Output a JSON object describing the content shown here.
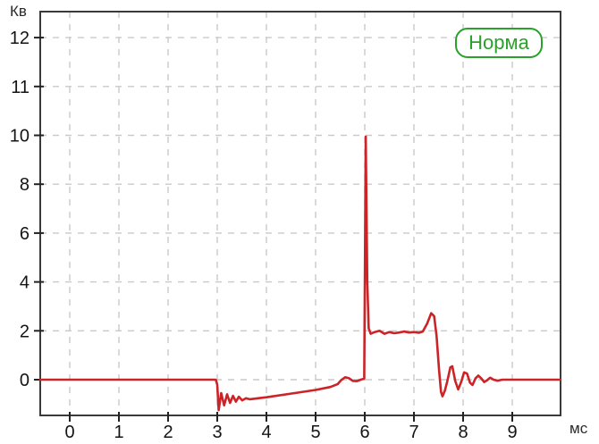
{
  "labels": {
    "y_unit": "Кв",
    "x_unit": "мс"
  },
  "badge": {
    "label": "Норма"
  },
  "colors": {
    "line": "#cc2327",
    "grid": "#c9c9c9",
    "axis": "#3a3a3a",
    "tick": "#222222",
    "text": "#141414",
    "badge": "#2aa12a",
    "background": "#ffffff"
  },
  "chart_data": {
    "type": "line",
    "title": "",
    "xlabel": "мс",
    "ylabel": "Кв",
    "grid": "dashed",
    "x_ticks": [
      0,
      1,
      2,
      3,
      4,
      5,
      6,
      7,
      8,
      9
    ],
    "y_ticks": [
      0,
      2,
      4,
      6,
      8,
      10,
      11,
      12
    ],
    "x_range": [
      -0.6,
      9.98
    ],
    "y_tick_note": "ticks equally spaced on screen: step 2 from 0-10, step 1 from 10-12",
    "annotations": [
      "Норма"
    ],
    "series": [
      {
        "name": "waveform",
        "color": "#cc2327",
        "points": [
          [
            -0.6,
            0
          ],
          [
            2.97,
            0
          ],
          [
            3.0,
            -0.2
          ],
          [
            3.03,
            -1.25
          ],
          [
            3.08,
            -0.55
          ],
          [
            3.14,
            -1.05
          ],
          [
            3.2,
            -0.6
          ],
          [
            3.26,
            -0.95
          ],
          [
            3.32,
            -0.66
          ],
          [
            3.38,
            -0.9
          ],
          [
            3.44,
            -0.7
          ],
          [
            3.51,
            -0.85
          ],
          [
            3.58,
            -0.76
          ],
          [
            3.66,
            -0.8
          ],
          [
            4.0,
            -0.72
          ],
          [
            4.5,
            -0.57
          ],
          [
            5.0,
            -0.42
          ],
          [
            5.3,
            -0.3
          ],
          [
            5.45,
            -0.18
          ],
          [
            5.52,
            -0.02
          ],
          [
            5.6,
            0.1
          ],
          [
            5.68,
            0.06
          ],
          [
            5.76,
            -0.05
          ],
          [
            5.84,
            -0.06
          ],
          [
            5.92,
            0.0
          ],
          [
            5.99,
            0.04
          ],
          [
            6.02,
            9.95
          ],
          [
            6.05,
            4.0
          ],
          [
            6.08,
            2.1
          ],
          [
            6.12,
            1.88
          ],
          [
            6.2,
            1.95
          ],
          [
            6.3,
            2.0
          ],
          [
            6.4,
            1.88
          ],
          [
            6.5,
            1.95
          ],
          [
            6.6,
            1.9
          ],
          [
            6.7,
            1.93
          ],
          [
            6.8,
            1.97
          ],
          [
            6.9,
            1.93
          ],
          [
            7.0,
            1.95
          ],
          [
            7.1,
            1.92
          ],
          [
            7.18,
            1.97
          ],
          [
            7.27,
            2.3
          ],
          [
            7.35,
            2.72
          ],
          [
            7.41,
            2.6
          ],
          [
            7.46,
            1.8
          ],
          [
            7.51,
            0.4
          ],
          [
            7.55,
            -0.5
          ],
          [
            7.58,
            -0.68
          ],
          [
            7.63,
            -0.45
          ],
          [
            7.68,
            -0.05
          ],
          [
            7.74,
            0.5
          ],
          [
            7.78,
            0.55
          ],
          [
            7.84,
            -0.05
          ],
          [
            7.9,
            -0.4
          ],
          [
            7.96,
            -0.1
          ],
          [
            8.02,
            0.3
          ],
          [
            8.08,
            0.25
          ],
          [
            8.14,
            -0.12
          ],
          [
            8.19,
            -0.22
          ],
          [
            8.25,
            0.05
          ],
          [
            8.31,
            0.17
          ],
          [
            8.37,
            0.05
          ],
          [
            8.43,
            -0.1
          ],
          [
            8.49,
            -0.02
          ],
          [
            8.55,
            0.08
          ],
          [
            8.62,
            0.0
          ],
          [
            8.7,
            -0.04
          ],
          [
            8.8,
            0.0
          ],
          [
            9.98,
            0.0
          ]
        ]
      }
    ]
  }
}
